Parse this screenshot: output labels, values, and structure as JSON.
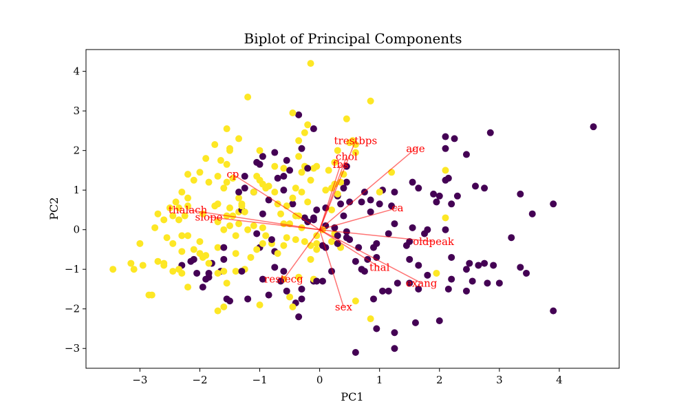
{
  "chart_data": {
    "type": "scatter",
    "title": "Biplot of Principal Components",
    "xlabel": "PC1",
    "ylabel": "PC2",
    "xlim": [
      -3.9,
      5.0
    ],
    "ylim": [
      -3.5,
      4.55
    ],
    "xticks": [
      -3,
      -2,
      -1,
      0,
      1,
      2,
      3,
      4
    ],
    "yticks": [
      -3,
      -2,
      -1,
      0,
      1,
      2,
      3,
      4
    ],
    "grid": false,
    "colors": {
      "class_0": "#440154",
      "class_1": "#fde725",
      "vector": "#ff0000"
    },
    "vectors": [
      {
        "name": "age",
        "x": 1.6,
        "y": 2.05
      },
      {
        "name": "sex",
        "x": 0.4,
        "y": -1.95
      },
      {
        "name": "cp",
        "x": -1.45,
        "y": 1.4
      },
      {
        "name": "trestbps",
        "x": 0.6,
        "y": 2.25
      },
      {
        "name": "chol",
        "x": 0.45,
        "y": 1.85
      },
      {
        "name": "fbs",
        "x": 0.35,
        "y": 1.65
      },
      {
        "name": "restecg",
        "x": -0.6,
        "y": -1.25
      },
      {
        "name": "thalach",
        "x": -2.2,
        "y": 0.5
      },
      {
        "name": "exang",
        "x": 1.7,
        "y": -1.35
      },
      {
        "name": "oldpeak",
        "x": 1.9,
        "y": -0.3
      },
      {
        "name": "slope",
        "x": -1.85,
        "y": 0.32
      },
      {
        "name": "ca",
        "x": 1.3,
        "y": 0.55
      },
      {
        "name": "thal",
        "x": 1.0,
        "y": -0.95
      }
    ],
    "points_class_0": [
      [
        4.57,
        2.6
      ],
      [
        2.85,
        2.45
      ],
      [
        2.1,
        2.35
      ],
      [
        2.25,
        2.3
      ],
      [
        2.1,
        2.05
      ],
      [
        2.45,
        1.9
      ],
      [
        2.1,
        1.25
      ],
      [
        2.15,
        1.3
      ],
      [
        2.6,
        1.1
      ],
      [
        2.75,
        1.05
      ],
      [
        3.35,
        0.9
      ],
      [
        3.9,
        0.65
      ],
      [
        3.55,
        0.4
      ],
      [
        3.2,
        -0.2
      ],
      [
        2.3,
        0.85
      ],
      [
        2.0,
        0.85
      ],
      [
        2.2,
        0.65
      ],
      [
        1.95,
        0.7
      ],
      [
        1.25,
        0.15
      ],
      [
        1.55,
        0.05
      ],
      [
        1.8,
        0.0
      ],
      [
        1.75,
        -0.1
      ],
      [
        2.1,
        0.0
      ],
      [
        1.5,
        -0.3
      ],
      [
        2.2,
        -0.7
      ],
      [
        2.5,
        -0.85
      ],
      [
        2.65,
        -0.9
      ],
      [
        2.75,
        -0.85
      ],
      [
        2.45,
        -1.0
      ],
      [
        2.55,
        -1.3
      ],
      [
        2.2,
        -1.25
      ],
      [
        2.15,
        -1.5
      ],
      [
        2.45,
        -1.55
      ],
      [
        2.8,
        -1.35
      ],
      [
        2.9,
        -0.9
      ],
      [
        3.35,
        -0.95
      ],
      [
        3.45,
        -1.1
      ],
      [
        3.0,
        -1.35
      ],
      [
        3.9,
        -2.05
      ],
      [
        2.0,
        -2.3
      ],
      [
        1.6,
        -2.35
      ],
      [
        1.25,
        -2.6
      ],
      [
        0.95,
        -2.5
      ],
      [
        1.25,
        -3.0
      ],
      [
        0.6,
        -3.1
      ],
      [
        0.9,
        -1.75
      ],
      [
        1.05,
        -1.55
      ],
      [
        1.3,
        -1.35
      ],
      [
        1.15,
        -1.55
      ],
      [
        1.5,
        -1.35
      ],
      [
        1.65,
        -1.5
      ],
      [
        1.8,
        -1.15
      ],
      [
        1.65,
        -0.9
      ],
      [
        1.5,
        -0.75
      ],
      [
        1.45,
        -0.4
      ],
      [
        1.15,
        -0.1
      ],
      [
        0.95,
        -0.7
      ],
      [
        0.8,
        -0.75
      ],
      [
        0.6,
        -0.8
      ],
      [
        0.7,
        -1.0
      ],
      [
        0.75,
        -1.05
      ],
      [
        0.5,
        -0.25
      ],
      [
        0.65,
        -0.45
      ],
      [
        0.9,
        -0.45
      ],
      [
        0.95,
        -0.35
      ],
      [
        0.45,
        -0.2
      ],
      [
        0.3,
        -0.35
      ],
      [
        0.4,
        0.35
      ],
      [
        0.35,
        0.65
      ],
      [
        0.3,
        0.85
      ],
      [
        0.5,
        0.7
      ],
      [
        0.4,
        1.05
      ],
      [
        0.75,
        0.95
      ],
      [
        0.45,
        1.2
      ],
      [
        0.45,
        1.6
      ],
      [
        0.7,
        0.7
      ],
      [
        0.85,
        0.75
      ],
      [
        1.0,
        0.65
      ],
      [
        1.2,
        0.6
      ],
      [
        1.25,
        0.95
      ],
      [
        1.05,
        1.0
      ],
      [
        1.55,
        1.2
      ],
      [
        1.65,
        1.05
      ],
      [
        1.9,
        0.9
      ],
      [
        0.85,
        0.45
      ],
      [
        0.1,
        0.55
      ],
      [
        -0.25,
        0.3
      ],
      [
        -0.1,
        0.3
      ],
      [
        -0.05,
        0.5
      ],
      [
        -0.1,
        0.25
      ],
      [
        -0.2,
        1.55
      ],
      [
        -0.5,
        1.5
      ],
      [
        -0.6,
        1.35
      ],
      [
        -0.6,
        1.0
      ],
      [
        -0.45,
        0.65
      ],
      [
        -0.85,
        0.75
      ],
      [
        -0.95,
        0.4
      ],
      [
        -1.1,
        0.95
      ],
      [
        -1.25,
        1.05
      ],
      [
        -1.0,
        1.65
      ],
      [
        -1.05,
        1.7
      ],
      [
        -0.95,
        1.85
      ],
      [
        -0.75,
        1.95
      ],
      [
        -0.7,
        1.3
      ],
      [
        -0.55,
        1.75
      ],
      [
        -0.3,
        2.05
      ],
      [
        -0.35,
        2.9
      ],
      [
        -0.1,
        2.55
      ],
      [
        -1.25,
        1.35
      ],
      [
        -1.35,
        0.95
      ],
      [
        -1.3,
        0.5
      ],
      [
        -1.05,
        -0.1
      ],
      [
        -0.8,
        -0.25
      ],
      [
        -1.0,
        -0.45
      ],
      [
        -0.75,
        -0.55
      ],
      [
        -0.75,
        -0.95
      ],
      [
        -0.95,
        -1.25
      ],
      [
        -0.6,
        -1.05
      ],
      [
        -0.55,
        -1.55
      ],
      [
        -0.65,
        -1.3
      ],
      [
        -0.85,
        -1.65
      ],
      [
        -0.4,
        -1.85
      ],
      [
        -0.3,
        -1.75
      ],
      [
        -0.35,
        -2.2
      ],
      [
        -0.1,
        -1.3
      ],
      [
        -0.05,
        -1.3
      ],
      [
        0.05,
        -1.3
      ],
      [
        0.2,
        -1.05
      ],
      [
        0.1,
        -0.45
      ],
      [
        0.3,
        -0.15
      ],
      [
        -1.6,
        -0.45
      ],
      [
        -1.6,
        -0.75
      ],
      [
        -1.8,
        -0.85
      ],
      [
        -2.1,
        -0.75
      ],
      [
        -2.15,
        -0.8
      ],
      [
        -1.85,
        -1.1
      ],
      [
        -1.65,
        -1.05
      ],
      [
        -1.9,
        -1.25
      ],
      [
        -1.3,
        -1.05
      ],
      [
        -1.55,
        -1.75
      ],
      [
        -2.3,
        -0.9
      ],
      [
        -2.05,
        -1.1
      ],
      [
        -1.85,
        -1.2
      ],
      [
        -1.95,
        -1.45
      ],
      [
        -1.5,
        -1.8
      ],
      [
        -1.2,
        -1.75
      ],
      [
        -0.3,
        -1.5
      ],
      [
        0.05,
        -0.4
      ],
      [
        0.1,
        0.1
      ],
      [
        0.25,
        0.05
      ],
      [
        0.45,
        -0.05
      ],
      [
        -0.2,
        0.2
      ]
    ],
    "points_class_1": [
      [
        -0.15,
        4.2
      ],
      [
        0.45,
        2.8
      ],
      [
        0.85,
        3.25
      ],
      [
        -0.45,
        2.95
      ],
      [
        -0.2,
        2.65
      ],
      [
        -0.25,
        2.45
      ],
      [
        -1.2,
        3.35
      ],
      [
        -1.35,
        2.3
      ],
      [
        -1.55,
        2.55
      ],
      [
        -1.5,
        2.0
      ],
      [
        -1.5,
        2.05
      ],
      [
        -1.75,
        2.15
      ],
      [
        -1.9,
        1.8
      ],
      [
        -1.55,
        1.65
      ],
      [
        -2.0,
        1.45
      ],
      [
        -2.2,
        1.4
      ],
      [
        -2.1,
        1.25
      ],
      [
        -1.85,
        1.2
      ],
      [
        -1.55,
        1.2
      ],
      [
        -1.45,
        1.3
      ],
      [
        -1.6,
        1.05
      ],
      [
        -1.7,
        1.35
      ],
      [
        -2.2,
        0.8
      ],
      [
        -2.3,
        0.95
      ],
      [
        -2.2,
        0.6
      ],
      [
        -1.95,
        0.4
      ],
      [
        -1.75,
        0.6
      ],
      [
        -1.7,
        0.65
      ],
      [
        -1.5,
        0.55
      ],
      [
        -1.35,
        0.8
      ],
      [
        -1.35,
        0.45
      ],
      [
        -1.25,
        0.45
      ],
      [
        -1.3,
        0.65
      ],
      [
        -1.45,
        0.35
      ],
      [
        -1.55,
        0.35
      ],
      [
        -1.7,
        0.2
      ],
      [
        -1.5,
        0.1
      ],
      [
        -1.35,
        0.15
      ],
      [
        -2.4,
        0.7
      ],
      [
        -2.35,
        0.55
      ],
      [
        -2.5,
        0.55
      ],
      [
        -2.45,
        0.35
      ],
      [
        -2.6,
        0.25
      ],
      [
        -2.35,
        0.25
      ],
      [
        -2.25,
        0.35
      ],
      [
        -2.7,
        0.4
      ],
      [
        -2.75,
        0.05
      ],
      [
        -2.55,
        -0.2
      ],
      [
        -2.3,
        -0.15
      ],
      [
        -2.2,
        -0.15
      ],
      [
        -2.45,
        -0.35
      ],
      [
        -2.3,
        -0.55
      ],
      [
        -2.1,
        -0.5
      ],
      [
        -2.0,
        -0.3
      ],
      [
        -2.0,
        -0.6
      ],
      [
        -1.9,
        -0.65
      ],
      [
        -1.95,
        -0.7
      ],
      [
        -1.85,
        -0.85
      ],
      [
        -1.7,
        -0.45
      ],
      [
        -1.6,
        0.0
      ],
      [
        -1.4,
        -0.15
      ],
      [
        -1.2,
        0.0
      ],
      [
        -1.1,
        0.1
      ],
      [
        -0.95,
        0.05
      ],
      [
        -3.0,
        -0.35
      ],
      [
        -3.15,
        -0.85
      ],
      [
        -3.45,
        -1.0
      ],
      [
        -3.1,
        -1.0
      ],
      [
        -2.95,
        -0.9
      ],
      [
        -2.7,
        -0.8
      ],
      [
        -2.6,
        -0.9
      ],
      [
        -2.6,
        -0.85
      ],
      [
        -2.45,
        -1.05
      ],
      [
        -2.35,
        -1.0
      ],
      [
        -2.3,
        -1.1
      ],
      [
        -2.2,
        -1.45
      ],
      [
        -2.85,
        -1.65
      ],
      [
        -2.8,
        -1.65
      ],
      [
        -1.7,
        -2.05
      ],
      [
        -1.6,
        -1.95
      ],
      [
        -1.4,
        -1.05
      ],
      [
        -1.55,
        -1.35
      ],
      [
        -1.6,
        -1.05
      ],
      [
        -1.7,
        -1.1
      ],
      [
        -1.25,
        -1.0
      ],
      [
        -1.4,
        -0.6
      ],
      [
        -1.15,
        -0.7
      ],
      [
        -1.05,
        -0.5
      ],
      [
        -0.95,
        -0.35
      ],
      [
        -0.9,
        -0.15
      ],
      [
        -0.8,
        -0.35
      ],
      [
        -0.7,
        -0.6
      ],
      [
        -0.6,
        -0.4
      ],
      [
        -0.55,
        -0.2
      ],
      [
        -0.5,
        0.15
      ],
      [
        -0.6,
        0.15
      ],
      [
        -0.65,
        0.4
      ],
      [
        -0.4,
        0.35
      ],
      [
        -0.35,
        0.35
      ],
      [
        -0.3,
        0.05
      ],
      [
        -0.4,
        -0.25
      ],
      [
        -0.25,
        -0.3
      ],
      [
        -0.15,
        -0.4
      ],
      [
        -0.05,
        -0.5
      ],
      [
        -0.05,
        -0.35
      ],
      [
        -1.0,
        -1.9
      ],
      [
        -0.45,
        -1.95
      ],
      [
        -0.5,
        -1.7
      ],
      [
        -0.6,
        -1.25
      ],
      [
        -0.35,
        -1.2
      ],
      [
        -0.15,
        -0.75
      ],
      [
        -0.1,
        -1.25
      ],
      [
        0.3,
        0.9
      ],
      [
        0.35,
        1.2
      ],
      [
        0.4,
        1.4
      ],
      [
        0.25,
        1.15
      ],
      [
        0.2,
        1.05
      ],
      [
        0.1,
        1.0
      ],
      [
        0.3,
        2.0
      ],
      [
        0.25,
        1.7
      ],
      [
        0.15,
        1.5
      ],
      [
        0.5,
        2.2
      ],
      [
        0.55,
        2.25
      ],
      [
        0.6,
        2.15
      ],
      [
        0.6,
        1.95
      ],
      [
        -1.0,
        2.0
      ],
      [
        -0.75,
        1.6
      ],
      [
        -0.6,
        1.55
      ],
      [
        -0.35,
        1.85
      ],
      [
        -0.3,
        1.45
      ],
      [
        -0.1,
        1.55
      ],
      [
        -0.05,
        1.6
      ],
      [
        -0.35,
        2.25
      ],
      [
        -0.25,
        1.6
      ],
      [
        -0.15,
        1.25
      ],
      [
        -0.4,
        1.05
      ],
      [
        -0.75,
        0.95
      ],
      [
        -0.9,
        1.05
      ],
      [
        -0.95,
        1.15
      ],
      [
        -1.05,
        1.35
      ],
      [
        -0.85,
        1.1
      ],
      [
        -0.3,
        0.95
      ],
      [
        -0.45,
        0.8
      ],
      [
        -0.55,
        0.6
      ],
      [
        -0.7,
        0.65
      ],
      [
        -0.2,
        0.7
      ],
      [
        0.2,
        0.5
      ],
      [
        0.35,
        -0.45
      ],
      [
        0.2,
        -0.3
      ],
      [
        -0.05,
        -0.15
      ],
      [
        0.05,
        0.0
      ],
      [
        0.25,
        -0.1
      ],
      [
        -1.65,
        1.75
      ],
      [
        -1.1,
        0.95
      ],
      [
        1.2,
        1.45
      ],
      [
        1.0,
        0.95
      ],
      [
        2.1,
        0.3
      ],
      [
        1.95,
        -1.1
      ],
      [
        2.1,
        1.5
      ],
      [
        0.85,
        -2.25
      ],
      [
        0.6,
        -1.8
      ],
      [
        -1.3,
        0.6
      ],
      [
        -1.0,
        1.25
      ]
    ]
  }
}
